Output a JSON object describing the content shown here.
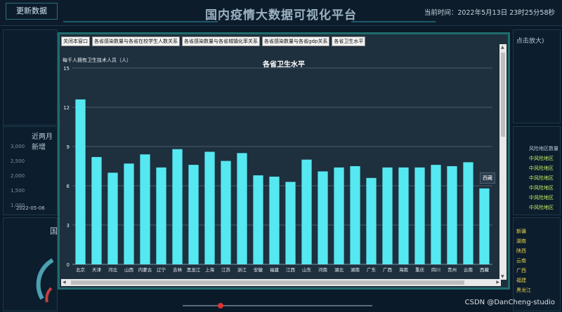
{
  "header": {
    "update_label": "更新数据",
    "title": "国内疫情大数据可视化平台",
    "time_text": "当前时间：2022年5月13日 23时25分58秒"
  },
  "background_panels": {
    "left_mid_title": "近两月新增",
    "left_mid_axis": [
      "3,000",
      "2,500",
      "2,000",
      "1,500",
      "1,000"
    ],
    "left_mid_date": "2022-05-06",
    "left_bottom_label": "国",
    "top_right_text": "点击放大)",
    "right_risk_header": "风险地区数量",
    "right_risk_items": [
      "中风险地区",
      "中风险地区",
      "中风险地区",
      "中风险地区",
      "中风险地区",
      "中风险地区"
    ],
    "right_bottom_labels": [
      "新疆",
      "湖南",
      "陕西",
      "云南",
      "广西",
      "福建",
      "黑龙江"
    ]
  },
  "modal": {
    "buttons": [
      "关闭本窗口",
      "各省感染数量与各省在校学生人数关系",
      "各省感染数量与各省城镇化率关系",
      "各省感染数量与各省gdp关系",
      "各省卫生水平"
    ],
    "tooltip": "西藏"
  },
  "chart_data": {
    "type": "bar",
    "title": "各省卫生水平",
    "ylabel": "每千人拥有卫生技术人员（人）",
    "ylim": [
      0,
      15
    ],
    "yticks": [
      0,
      3,
      6,
      9,
      12,
      15
    ],
    "categories": [
      "北京",
      "天津",
      "河北",
      "山西",
      "内蒙古",
      "辽宁",
      "吉林",
      "黑龙江",
      "上海",
      "江苏",
      "浙江",
      "安徽",
      "福建",
      "江西",
      "山东",
      "河南",
      "湖北",
      "湖南",
      "广东",
      "广西",
      "海南",
      "重庆",
      "四川",
      "贵州",
      "云南",
      "西藏"
    ],
    "values": [
      12.6,
      8.2,
      7.0,
      7.7,
      8.4,
      7.4,
      8.8,
      7.6,
      8.6,
      7.9,
      8.5,
      6.8,
      6.7,
      6.3,
      8.0,
      7.1,
      7.4,
      7.5,
      6.6,
      7.4,
      7.4,
      7.4,
      7.6,
      7.5,
      7.8,
      5.8
    ],
    "color": "#55e8f0",
    "grid": true
  },
  "watermark": "CSDN @DanCheng-studio"
}
